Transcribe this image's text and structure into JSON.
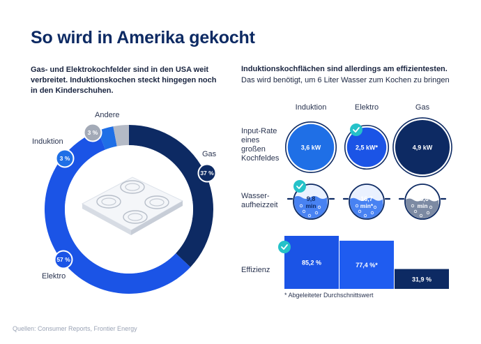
{
  "header": {
    "title": "So wird in Amerika gekocht",
    "subtitle_left": "Gas- und Elektrokochfelder sind in den USA weit verbreitet. Induktionskochen steckt hingegen noch in den Kinderschuhen.",
    "subtitle_right_bold": "Induktionskochflächen sind allerdings am effizientesten.",
    "subtitle_right": "Das wird benötigt, um 6 Liter Wasser zum Kochen zu bringen"
  },
  "colors": {
    "gas": "#0d2a63",
    "elektro": "#1b54e6",
    "induktion": "#1f6fe6",
    "andere": "#b4bac6",
    "title": "#0d2a63"
  },
  "chart_data": [
    {
      "type": "pie",
      "variant": "donut",
      "slices": [
        {
          "name": "Gas",
          "value": 37,
          "label": "37 %"
        },
        {
          "name": "Elektro",
          "value": 57,
          "label": "57 %"
        },
        {
          "name": "Induktion",
          "value": 3,
          "label": "3 %"
        },
        {
          "name": "Andere",
          "value": 3,
          "label": "3 %"
        }
      ]
    },
    {
      "type": "table",
      "columns": [
        "Induktion",
        "Elektro",
        "Gas"
      ],
      "rows": [
        {
          "label": "Input-Rate eines großen Kochfeldes",
          "values": [
            "3,6 kW",
            "2,5 kW*",
            "4,9 kW"
          ],
          "numeric": [
            3.6,
            2.5,
            4.9
          ],
          "unit": "kW",
          "best": "Elektro"
        },
        {
          "label": "Wasser-aufheizzeit",
          "values": [
            "9,8 min",
            "16,7 min*",
            "18,6 min"
          ],
          "numeric": [
            9.8,
            16.7,
            18.6
          ],
          "unit": "min",
          "best": "Induktion"
        }
      ]
    },
    {
      "type": "bar",
      "title": "Effizienz",
      "categories": [
        "Induktion",
        "Elektro",
        "Gas"
      ],
      "values": [
        85.2,
        77.4,
        31.9
      ],
      "labels": [
        "85,2 %",
        "77,4 %*",
        "31,9 %"
      ],
      "best": "Induktion"
    }
  ],
  "donut_labels": {
    "andere": "Andere",
    "induktion": "Induktion",
    "gas": "Gas",
    "elektro": "Elektro"
  },
  "row_labels": {
    "input_line1": "Input-Rate",
    "input_line2": "eines",
    "input_line3": "großen",
    "input_line4": "Kochfeldes",
    "wasser_line1": "Wasser-",
    "wasser_line2": "aufheizzeit",
    "effizienz": "Effizienz"
  },
  "footnote": "* Abgeleiteter Durchschnittswert",
  "source": "Quellen: Consumer Reports, Frontier Energy"
}
